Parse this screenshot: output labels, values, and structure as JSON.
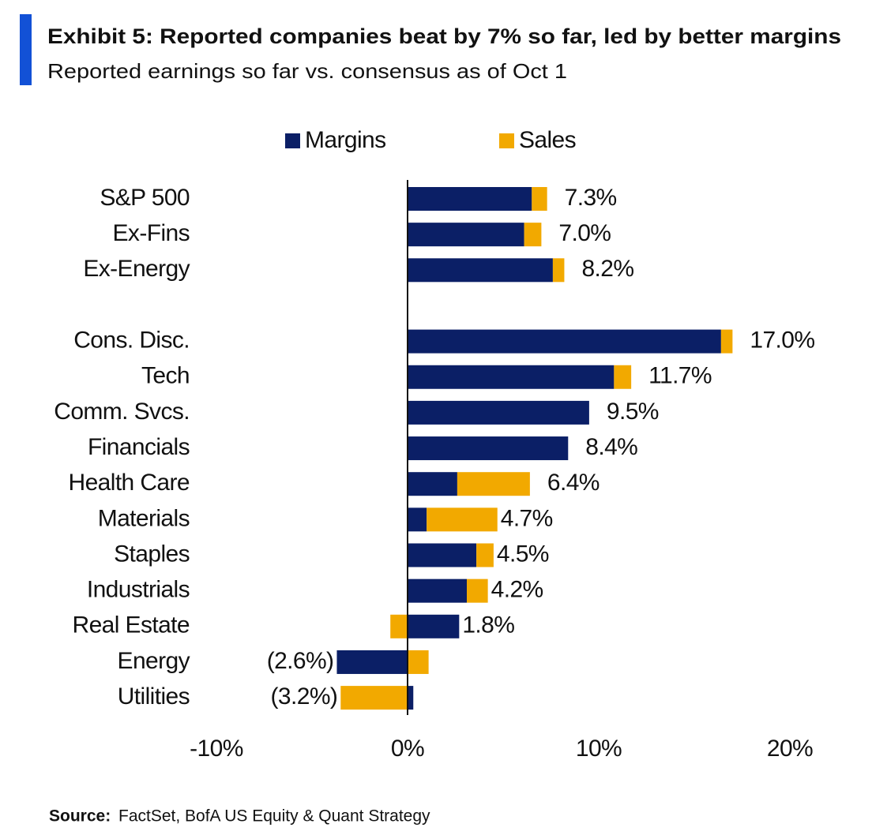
{
  "chart_data": {
    "type": "stacked-barh",
    "title": "Exhibit 5: Reported companies beat by 7% so far, led by better margins",
    "subtitle": "Reported earnings so far vs. consensus as of Oct 1",
    "source_label": "Source:",
    "source": "FactSet, BofA US Equity & Quant Strategy",
    "categories": [
      "S&P 500",
      "Ex-Fins",
      "Ex-Energy",
      null,
      "Cons. Disc.",
      "Tech",
      "Comm. Svcs.",
      "Financials",
      "Health Care",
      "Materials",
      "Staples",
      "Industrials",
      "Real Estate",
      "Energy",
      "Utilities"
    ],
    "series": [
      {
        "name": "Margins",
        "color": "#0b1f66",
        "values": [
          6.5,
          6.1,
          7.6,
          null,
          16.4,
          10.8,
          9.5,
          8.4,
          2.6,
          1.0,
          3.6,
          3.1,
          2.7,
          -3.7,
          0.3
        ]
      },
      {
        "name": "Sales",
        "color": "#f2a900",
        "values": [
          0.8,
          0.9,
          0.6,
          null,
          0.6,
          0.9,
          0,
          0,
          3.8,
          3.7,
          0.9,
          1.1,
          -0.9,
          1.1,
          -3.5
        ]
      }
    ],
    "totals": [
      7.3,
      7.0,
      8.2,
      null,
      17.0,
      11.7,
      9.5,
      8.4,
      6.4,
      4.7,
      4.5,
      4.2,
      1.8,
      -2.6,
      -3.2
    ],
    "total_labels": [
      "7.3%",
      "7.0%",
      "8.2%",
      null,
      "17.0%",
      "11.7%",
      "9.5%",
      "8.4%",
      "6.4%",
      "4.7%",
      "4.5%",
      "4.2%",
      "1.8%",
      "(2.6%)",
      "(3.2%)"
    ],
    "xlim": [
      -10,
      20
    ],
    "xticks": [
      {
        "value": -10,
        "label": "-10%"
      },
      {
        "value": 0,
        "label": "0%"
      },
      {
        "value": 10,
        "label": "10%"
      },
      {
        "value": 20,
        "label": "20%"
      }
    ],
    "legend": "top"
  }
}
